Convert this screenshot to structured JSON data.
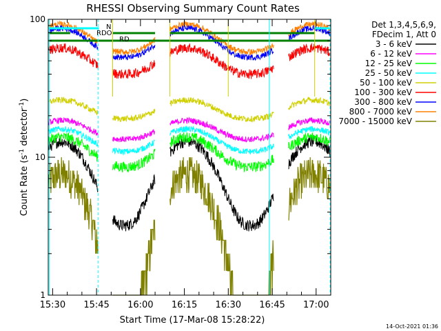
{
  "chart_data": {
    "type": "line",
    "title": "RHESSI Observing Summary Count Rates",
    "xlabel": "Start Time (17-Mar-08 15:28:22)",
    "ylabel_main": "Count Rate (s",
    "ylabel_exp": "-1",
    "ylabel_tail": " detector",
    "ylabel_close": ")",
    "y_scale": "log",
    "ylim": [
      1,
      100
    ],
    "xlim_minutes": [
      -1.5,
      95
    ],
    "y_ticks": [
      "1",
      "10",
      "100"
    ],
    "x_ticks": [
      {
        "label": "15:30",
        "minute": 0
      },
      {
        "label": "15:45",
        "minute": 15
      },
      {
        "label": "16:00",
        "minute": 30
      },
      {
        "label": "16:15",
        "minute": 45
      },
      {
        "label": "16:30",
        "minute": 60
      },
      {
        "label": "16:45",
        "minute": 75
      },
      {
        "label": "17:00",
        "minute": 90
      }
    ],
    "legend_header": [
      "Det 1,3,4,5,6,9,",
      "FDecim 1, Att 0"
    ],
    "legend_placement": "right",
    "series": [
      {
        "name": "3 - 6 keV",
        "color": "#000000"
      },
      {
        "name": "6 - 12 keV",
        "color": "#ff00ff"
      },
      {
        "name": "12 - 25 keV",
        "color": "#00ff00"
      },
      {
        "name": "25 - 50 keV",
        "color": "#00ffff"
      },
      {
        "name": "50 - 100 keV",
        "color": "#d0d000"
      },
      {
        "name": "100 - 300 keV",
        "color": "#ff0000"
      },
      {
        "name": "300 - 800 keV",
        "color": "#0000ff"
      },
      {
        "name": "800 - 7000 keV",
        "color": "#ff8000"
      },
      {
        "name": "7000 - 15000 keV",
        "color": "#808000"
      }
    ],
    "series_profile_note": "orbital modulation: peaks near 15:33 and 16:16; night gaps 15:45-15:50, 16:05-16:10, 16:45-16:50",
    "annotations": [
      {
        "label": "N",
        "color": "#00ffff"
      },
      {
        "label": "RDO",
        "color": "#008000"
      },
      {
        "label": "RD",
        "color": "#008000"
      }
    ],
    "timestamp": "14-Oct-2021 01:36"
  }
}
